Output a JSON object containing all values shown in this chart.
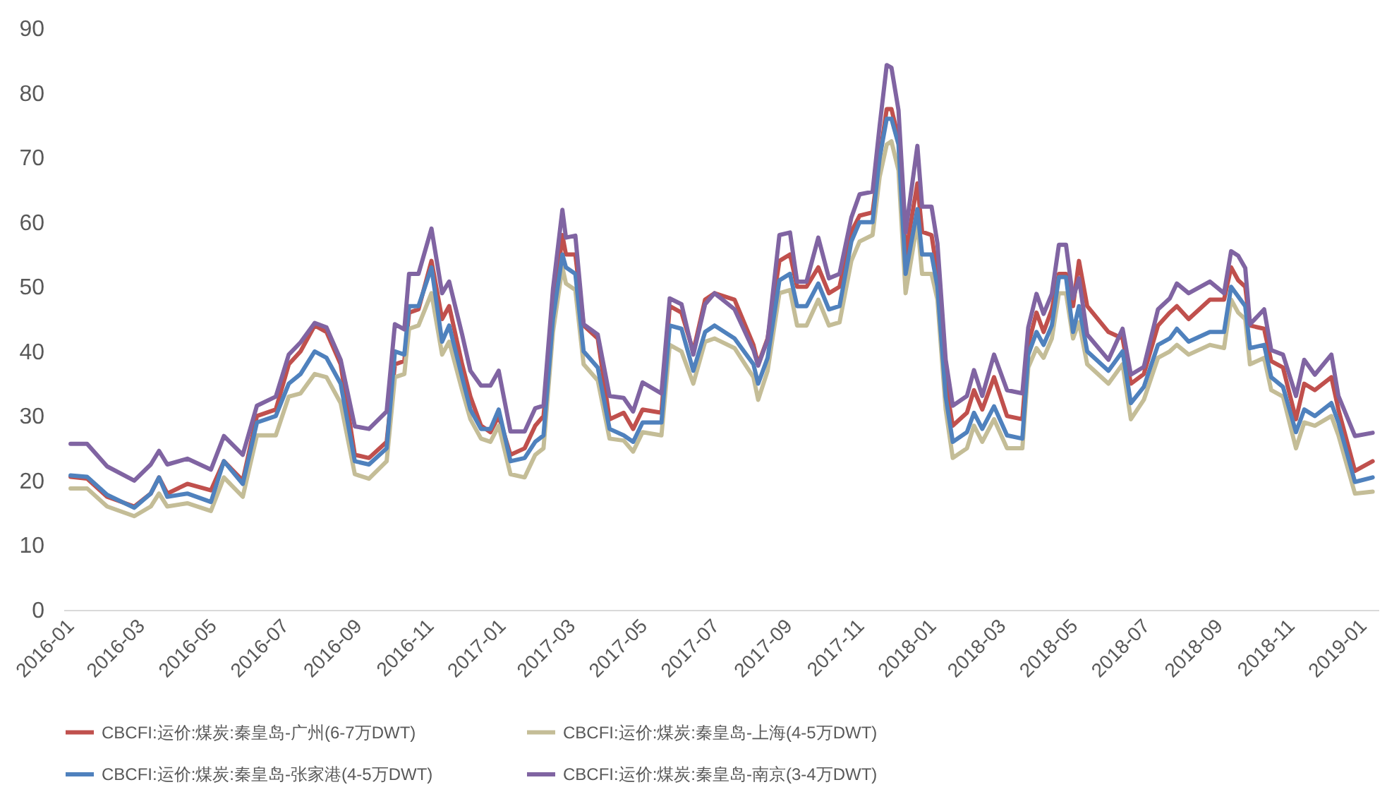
{
  "chart_data": {
    "type": "line",
    "x": [
      "2016-01-07",
      "2016-01-21",
      "2016-02-07",
      "2016-03-01",
      "2016-03-15",
      "2016-03-22",
      "2016-03-29",
      "2016-04-15",
      "2016-05-05",
      "2016-05-16",
      "2016-06-01",
      "2016-06-13",
      "2016-06-29",
      "2016-07-10",
      "2016-07-20",
      "2016-08-01",
      "2016-08-11",
      "2016-08-23",
      "2016-09-04",
      "2016-09-16",
      "2016-10-01",
      "2016-10-08",
      "2016-10-16",
      "2016-10-20",
      "2016-10-28",
      "2016-11-08",
      "2016-11-17",
      "2016-11-23",
      "2016-12-04",
      "2016-12-11",
      "2016-12-20",
      "2016-12-28",
      "2017-01-04",
      "2017-01-14",
      "2017-01-26",
      "2017-02-04",
      "2017-02-11",
      "2017-02-19",
      "2017-02-27",
      "2017-03-02",
      "2017-03-10",
      "2017-03-17",
      "2017-03-29",
      "2017-04-08",
      "2017-04-20",
      "2017-04-28",
      "2017-05-06",
      "2017-05-22",
      "2017-05-29",
      "2017-06-08",
      "2017-06-18",
      "2017-06-28",
      "2017-07-06",
      "2017-07-23",
      "2017-08-08",
      "2017-08-12",
      "2017-08-20",
      "2017-08-30",
      "2017-09-08",
      "2017-09-14",
      "2017-09-22",
      "2017-10-02",
      "2017-10-11",
      "2017-10-20",
      "2017-10-30",
      "2017-11-06",
      "2017-11-17",
      "2017-11-23",
      "2017-11-29",
      "2017-12-03",
      "2017-12-09",
      "2017-12-15",
      "2017-12-25",
      "2017-12-29",
      "2018-01-06",
      "2018-01-11",
      "2018-01-18",
      "2018-01-24",
      "2018-02-05",
      "2018-02-11",
      "2018-02-18",
      "2018-02-28",
      "2018-03-11",
      "2018-03-24",
      "2018-03-29",
      "2018-04-05",
      "2018-04-11",
      "2018-04-18",
      "2018-04-24",
      "2018-04-30",
      "2018-05-06",
      "2018-05-11",
      "2018-05-18",
      "2018-06-05",
      "2018-06-17",
      "2018-06-24",
      "2018-07-05",
      "2018-07-17",
      "2018-07-27",
      "2018-08-02",
      "2018-08-12",
      "2018-08-30",
      "2018-09-11",
      "2018-09-17",
      "2018-09-23",
      "2018-09-29",
      "2018-10-03",
      "2018-10-15",
      "2018-10-21",
      "2018-10-31",
      "2018-11-11",
      "2018-11-18",
      "2018-11-27",
      "2018-12-11",
      "2018-12-17",
      "2018-12-31",
      "2019-01-15"
    ],
    "series": [
      {
        "name": "CBCFI:运价:煤炭:秦皇岛-广州(6-7万DWT)",
        "color": "#c0504d",
        "values": [
          20.6,
          20.3,
          17.5,
          16,
          18,
          20.5,
          18,
          19.5,
          18.5,
          23,
          20,
          30,
          31,
          38,
          40,
          44,
          43,
          38,
          24,
          23.5,
          26,
          38,
          38.5,
          46,
          46.5,
          54,
          45,
          47,
          38,
          33,
          28.5,
          27.5,
          30,
          24,
          25,
          28.5,
          30,
          45,
          58,
          55,
          55,
          44,
          42,
          29.5,
          30.5,
          28,
          31,
          30.5,
          47,
          46,
          40,
          48,
          49,
          48,
          41,
          38,
          42,
          54,
          55,
          50,
          50,
          53,
          49,
          50,
          58.5,
          61,
          61.5,
          70,
          77.5,
          77.5,
          73,
          55,
          66,
          58.5,
          58,
          52,
          35,
          28.5,
          30.5,
          34,
          31,
          36,
          30,
          29.5,
          41,
          46,
          43,
          46.5,
          52,
          52,
          47,
          54,
          47,
          43,
          42,
          35,
          36.5,
          44,
          46,
          47,
          45,
          48,
          48,
          53,
          51,
          50,
          44,
          43.5,
          38.5,
          37.5,
          29.5,
          35,
          34,
          36,
          31,
          21.5,
          23
        ]
      },
      {
        "name": "CBCFI:运价:煤炭:秦皇岛-上海(4-5万DWT)",
        "color": "#c4bd97",
        "values": [
          18.8,
          18.8,
          16,
          14.5,
          16,
          18,
          16,
          16.5,
          15.3,
          20.5,
          17.5,
          27,
          27,
          33,
          33.5,
          36.5,
          36,
          32,
          21,
          20.3,
          23,
          36,
          36.5,
          43.5,
          44,
          49,
          39.5,
          41.5,
          34,
          29.5,
          26.5,
          26,
          28.5,
          21,
          20.5,
          24,
          25,
          43,
          53,
          50.5,
          49.5,
          38,
          35.5,
          26.5,
          26.2,
          24.5,
          27.5,
          27,
          41,
          40,
          35,
          41.5,
          42,
          40.5,
          36,
          32.5,
          37,
          49,
          49.5,
          44,
          44,
          48,
          44,
          44.5,
          54,
          57,
          58,
          67,
          72,
          72.5,
          68,
          49,
          60,
          52,
          52,
          48,
          31,
          23.5,
          25,
          28.5,
          26,
          29.5,
          25,
          25,
          37.5,
          40.5,
          39,
          42,
          49,
          49,
          42,
          44.5,
          38,
          35,
          38,
          29.5,
          32.5,
          39,
          40,
          41,
          39.5,
          41,
          40.5,
          48,
          46,
          45,
          38,
          39,
          34,
          33,
          25,
          29,
          28.5,
          30,
          27,
          18,
          18.3
        ]
      },
      {
        "name": "CBCFI:运价:煤炭:秦皇岛-张家港(4-5万DWT)",
        "color": "#4f81bd",
        "values": [
          20.8,
          20.6,
          17.8,
          15.8,
          18,
          20.5,
          17.5,
          18,
          16.7,
          23,
          19.5,
          29,
          30,
          35,
          36.5,
          40,
          39,
          35,
          23,
          22.5,
          25,
          40,
          39.5,
          47,
          47,
          53,
          41.5,
          44,
          36,
          31,
          28,
          28,
          31,
          23,
          23.5,
          26,
          27,
          45,
          55,
          53,
          52,
          40,
          37.5,
          28,
          27,
          26,
          29,
          29,
          44,
          43.5,
          37,
          43,
          44,
          42,
          38,
          35,
          39,
          51,
          52,
          47,
          47,
          50.5,
          46.5,
          47,
          57,
          60,
          60,
          70,
          76,
          76,
          72,
          52,
          62,
          55,
          55,
          50,
          33,
          26,
          27.5,
          30.5,
          28,
          31.5,
          27,
          26.5,
          39.5,
          43,
          41,
          44,
          51.5,
          51.5,
          43,
          47,
          40,
          37,
          40,
          32,
          34.5,
          41,
          42,
          43.5,
          41.5,
          43,
          43,
          50,
          48.5,
          47,
          40.5,
          41,
          36,
          34.5,
          27.5,
          31,
          30,
          32,
          29,
          19.8,
          20.5
        ]
      },
      {
        "name": "CBCFI:运价:煤炭:秦皇岛-南京(3-4万DWT)",
        "color": "#8064a2",
        "values": [
          25.7,
          25.7,
          22.2,
          20,
          22.5,
          24.6,
          22.5,
          23.4,
          21.7,
          26.9,
          24,
          31.6,
          33,
          39.5,
          41.4,
          44.4,
          43.7,
          38.7,
          28.4,
          28,
          30.7,
          44.2,
          43.4,
          52,
          52,
          59,
          49,
          50.8,
          42.6,
          37,
          34.7,
          34.7,
          37,
          27.6,
          27.6,
          31.2,
          31.6,
          49.6,
          61.9,
          57.6,
          57.9,
          44.2,
          42.6,
          33.1,
          32.8,
          30.7,
          35.2,
          33.5,
          48.2,
          47.3,
          39.5,
          47.3,
          49,
          46.5,
          40.2,
          37.8,
          41.8,
          58,
          58.4,
          50.8,
          50.8,
          57.6,
          51.3,
          52,
          60.7,
          64.3,
          64.7,
          74.9,
          84.3,
          83.9,
          77.3,
          58.4,
          71.8,
          62.4,
          62.4,
          56.7,
          38.7,
          31.6,
          33.1,
          37.1,
          33.1,
          39.5,
          34,
          33.5,
          43.7,
          48.9,
          45.8,
          48.9,
          56.5,
          56.5,
          48.2,
          51.3,
          42.6,
          38.7,
          43.5,
          36.4,
          37.6,
          46.5,
          48.2,
          50.5,
          49,
          50.8,
          49,
          55.5,
          54.8,
          52.9,
          44.2,
          46.5,
          40.2,
          39.5,
          33.1,
          38.7,
          36.4,
          39.5,
          33.1,
          26.9,
          27.4
        ]
      }
    ],
    "xlim": [
      "2016-01-01",
      "2019-01-20"
    ],
    "xticks": [
      "2016-01",
      "2016-03",
      "2016-05",
      "2016-07",
      "2016-09",
      "2016-11",
      "2017-01",
      "2017-03",
      "2017-05",
      "2017-07",
      "2017-09",
      "2017-11",
      "2018-01",
      "2018-03",
      "2018-05",
      "2018-07",
      "2018-09",
      "2018-11",
      "2019-01"
    ],
    "ylim": [
      0,
      90
    ],
    "yticks": [
      0,
      10,
      20,
      30,
      40,
      50,
      60,
      70,
      80,
      90
    ],
    "grid": false,
    "legend": "bottom",
    "marker": "none",
    "line_style": "solid"
  }
}
